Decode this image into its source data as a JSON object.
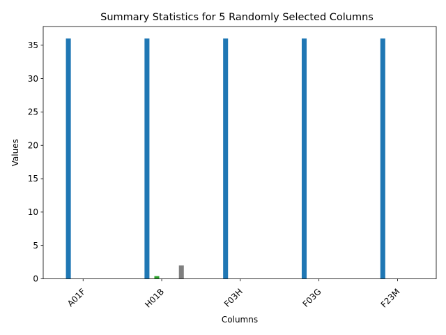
{
  "chart_data": {
    "type": "bar",
    "title": "Summary Statistics for 5 Randomly Selected Columns",
    "xlabel": "Columns",
    "ylabel": "Values",
    "categories": [
      "A01F",
      "H01B",
      "F03H",
      "F03G",
      "F23M"
    ],
    "ylim": [
      0,
      37.8
    ],
    "yticks": [
      0,
      5,
      10,
      15,
      20,
      25,
      30,
      35
    ],
    "grid": false,
    "legend": "none",
    "series": [
      {
        "color": "#1f77b4",
        "values": [
          36,
          36,
          36,
          36,
          36
        ]
      },
      {
        "color": "#ff7f0e",
        "values": [
          0,
          0.05,
          0,
          0,
          0
        ]
      },
      {
        "color": "#2ca02c",
        "values": [
          0,
          0.4,
          0,
          0,
          0
        ]
      },
      {
        "color": "#d62728",
        "values": [
          0,
          0,
          0,
          0,
          0
        ]
      },
      {
        "color": "#9467bd",
        "values": [
          0,
          0,
          0,
          0,
          0
        ]
      },
      {
        "color": "#8c564b",
        "values": [
          0,
          0,
          0,
          0,
          0
        ]
      },
      {
        "color": "#e377c2",
        "values": [
          0,
          0,
          0,
          0,
          0
        ]
      },
      {
        "color": "#7f7f7f",
        "values": [
          0,
          2,
          0,
          0,
          0
        ]
      }
    ]
  }
}
